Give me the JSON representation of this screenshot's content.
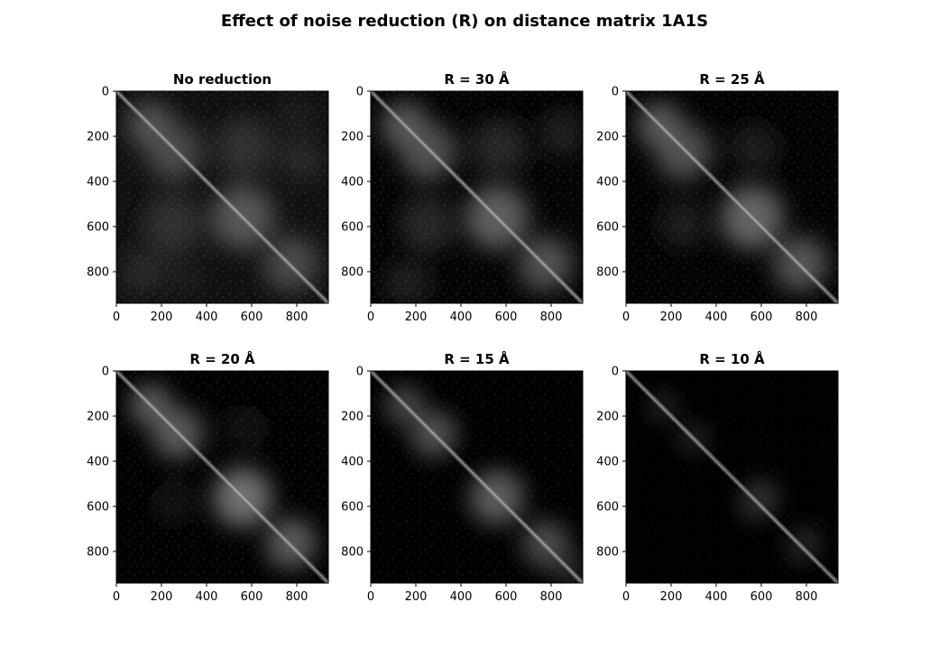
{
  "figure": {
    "title": "Effect of noise reduction (R) on distance matrix 1A1S"
  },
  "chart_data": [
    {
      "type": "heatmap",
      "title": "No reduction",
      "colormap": "gray",
      "background": "#111111",
      "xlim": [
        0,
        940
      ],
      "ylim": [
        940,
        0
      ],
      "xticks": [
        0,
        200,
        400,
        600,
        800
      ],
      "yticks": [
        0,
        200,
        400,
        600,
        800
      ],
      "texture_opacity": 0.55,
      "features": [
        {
          "x": 150,
          "y": 150,
          "r": 90,
          "v": 0.35
        },
        {
          "x": 250,
          "y": 280,
          "r": 110,
          "v": 0.3
        },
        {
          "x": 560,
          "y": 560,
          "r": 130,
          "v": 0.35
        },
        {
          "x": 780,
          "y": 760,
          "r": 110,
          "v": 0.3
        },
        {
          "x": 560,
          "y": 250,
          "r": 120,
          "v": 0.2
        },
        {
          "x": 250,
          "y": 600,
          "r": 120,
          "v": 0.2
        },
        {
          "x": 820,
          "y": 300,
          "r": 90,
          "v": 0.18
        },
        {
          "x": 120,
          "y": 800,
          "r": 90,
          "v": 0.18
        }
      ]
    },
    {
      "type": "heatmap",
      "title": "R = 30 Å",
      "colormap": "gray",
      "background": "#050505",
      "xlim": [
        0,
        940
      ],
      "ylim": [
        940,
        0
      ],
      "xticks": [
        0,
        200,
        400,
        600,
        800
      ],
      "yticks": [
        0,
        200,
        400,
        600,
        800
      ],
      "texture_opacity": 0.5,
      "features": [
        {
          "x": 150,
          "y": 150,
          "r": 90,
          "v": 0.38
        },
        {
          "x": 250,
          "y": 280,
          "r": 110,
          "v": 0.33
        },
        {
          "x": 560,
          "y": 560,
          "r": 130,
          "v": 0.38
        },
        {
          "x": 780,
          "y": 760,
          "r": 110,
          "v": 0.33
        },
        {
          "x": 560,
          "y": 250,
          "r": 110,
          "v": 0.16
        },
        {
          "x": 250,
          "y": 600,
          "r": 110,
          "v": 0.16
        },
        {
          "x": 850,
          "y": 200,
          "r": 80,
          "v": 0.15
        },
        {
          "x": 150,
          "y": 850,
          "r": 80,
          "v": 0.15
        }
      ]
    },
    {
      "type": "heatmap",
      "title": "R = 25 Å",
      "colormap": "gray",
      "background": "#040404",
      "xlim": [
        0,
        940
      ],
      "ylim": [
        940,
        0
      ],
      "xticks": [
        0,
        200,
        400,
        600,
        800
      ],
      "yticks": [
        0,
        200,
        400,
        600,
        800
      ],
      "texture_opacity": 0.45,
      "features": [
        {
          "x": 150,
          "y": 150,
          "r": 90,
          "v": 0.38
        },
        {
          "x": 250,
          "y": 280,
          "r": 110,
          "v": 0.33
        },
        {
          "x": 560,
          "y": 560,
          "r": 130,
          "v": 0.4
        },
        {
          "x": 780,
          "y": 760,
          "r": 110,
          "v": 0.35
        },
        {
          "x": 560,
          "y": 250,
          "r": 90,
          "v": 0.13
        },
        {
          "x": 250,
          "y": 600,
          "r": 90,
          "v": 0.13
        }
      ]
    },
    {
      "type": "heatmap",
      "title": "R = 20 Å",
      "colormap": "gray",
      "background": "#020202",
      "xlim": [
        0,
        940
      ],
      "ylim": [
        940,
        0
      ],
      "xticks": [
        0,
        200,
        400,
        600,
        800
      ],
      "yticks": [
        0,
        200,
        400,
        600,
        800
      ],
      "texture_opacity": 0.4,
      "features": [
        {
          "x": 150,
          "y": 150,
          "r": 80,
          "v": 0.4
        },
        {
          "x": 270,
          "y": 280,
          "r": 100,
          "v": 0.38
        },
        {
          "x": 560,
          "y": 560,
          "r": 120,
          "v": 0.45
        },
        {
          "x": 780,
          "y": 760,
          "r": 100,
          "v": 0.38
        },
        {
          "x": 560,
          "y": 250,
          "r": 70,
          "v": 0.1
        },
        {
          "x": 250,
          "y": 600,
          "r": 70,
          "v": 0.1
        }
      ]
    },
    {
      "type": "heatmap",
      "title": "R = 15 Å",
      "colormap": "gray",
      "background": "#010101",
      "xlim": [
        0,
        940
      ],
      "ylim": [
        940,
        0
      ],
      "xticks": [
        0,
        200,
        400,
        600,
        800
      ],
      "yticks": [
        0,
        200,
        400,
        600,
        800
      ],
      "texture_opacity": 0.35,
      "features": [
        {
          "x": 150,
          "y": 150,
          "r": 70,
          "v": 0.35
        },
        {
          "x": 280,
          "y": 280,
          "r": 90,
          "v": 0.35
        },
        {
          "x": 560,
          "y": 560,
          "r": 110,
          "v": 0.38
        },
        {
          "x": 780,
          "y": 760,
          "r": 90,
          "v": 0.32
        },
        {
          "x": 880,
          "y": 880,
          "r": 60,
          "v": 0.2
        }
      ]
    },
    {
      "type": "heatmap",
      "title": "R = 10 Å",
      "colormap": "gray",
      "background": "#000000",
      "xlim": [
        0,
        940
      ],
      "ylim": [
        940,
        0
      ],
      "xticks": [
        0,
        200,
        400,
        600,
        800
      ],
      "yticks": [
        0,
        200,
        400,
        600,
        800
      ],
      "texture_opacity": 0.2,
      "features": [
        {
          "x": 160,
          "y": 160,
          "r": 45,
          "v": 0.25
        },
        {
          "x": 300,
          "y": 300,
          "r": 50,
          "v": 0.22
        },
        {
          "x": 600,
          "y": 560,
          "r": 70,
          "v": 0.25
        },
        {
          "x": 800,
          "y": 760,
          "r": 60,
          "v": 0.22
        }
      ]
    }
  ]
}
